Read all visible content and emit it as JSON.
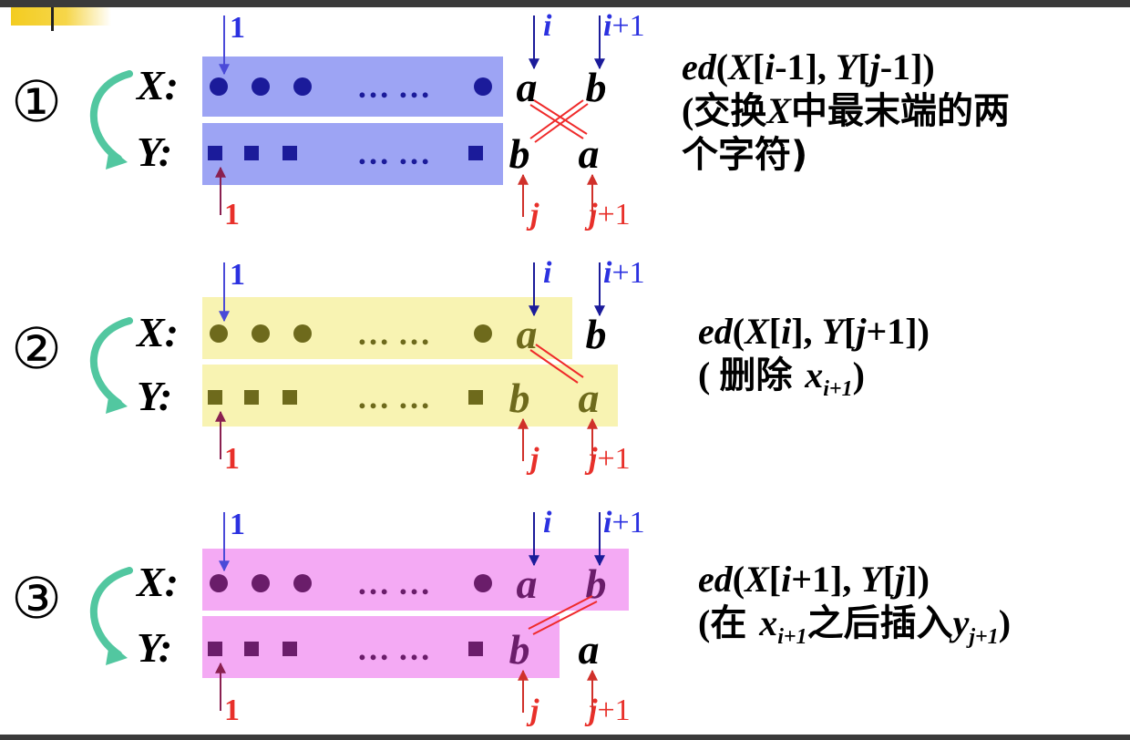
{
  "colors": {
    "band1": "#9da4f4",
    "band2": "#f8f3b2",
    "band3": "#f4aaf4",
    "olive": "#6e6a1c",
    "purple": "#6a1d6a",
    "blue_label": "#2b31e0",
    "red_label": "#e8302a",
    "connector": "#ef2a2a",
    "curve_arrow": "#52c7a0"
  },
  "labels": {
    "x": "X:",
    "y": "Y:",
    "one": "1",
    "i": "i",
    "i_plus_1_var": "i",
    "i_plus_1_suffix": "+1",
    "j": "j",
    "j_plus_1_var": "j",
    "j_plus_1_suffix": "+1",
    "ellipsis": "…  …",
    "a": "a",
    "b": "b"
  },
  "cases": [
    {
      "marker": "①",
      "ed": {
        "fn": "ed",
        "x": "X",
        "i": "i",
        "xsuf": "-1",
        "y": "Y",
        "j": "j",
        "ysuf": "-1"
      },
      "note1_open": "(交换",
      "note1_var": "X",
      "note1_cjk": "中最末端的两",
      "note2": "个字符)"
    },
    {
      "marker": "②",
      "ed": {
        "fn": "ed",
        "x": "X",
        "i": "i",
        "xsuf": "",
        "y": "Y",
        "j": "j",
        "ysuf": "+1"
      },
      "note_open": "( ",
      "note_cjk": "删除 ",
      "note_var": "x",
      "note_sub": "i+1",
      "note_close": ")"
    },
    {
      "marker": "③",
      "ed": {
        "fn": "ed",
        "x": "X",
        "i": "i",
        "xsuf": "+1",
        "y": "Y",
        "j": "j",
        "ysuf": ""
      },
      "note_open": "(",
      "note_cjk1": "在 ",
      "note_var1": "x",
      "note_sub1": "i+1",
      "note_cjk2": "之后插入",
      "note_var2": "y",
      "note_sub2": "j+1",
      "note_close": ")"
    }
  ]
}
